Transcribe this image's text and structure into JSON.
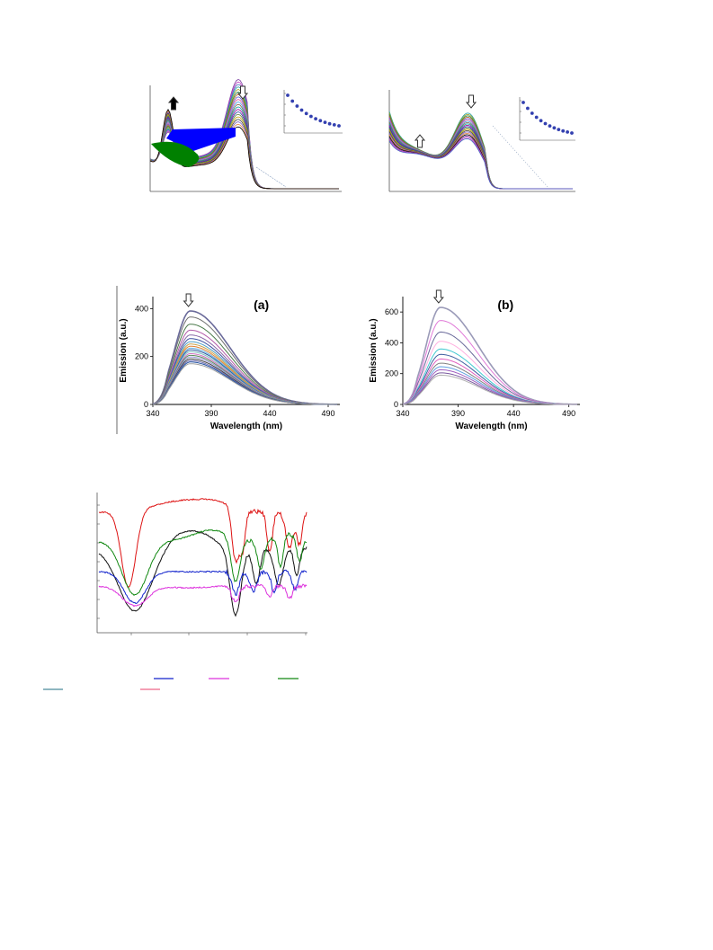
{
  "page": {
    "background": "#ffffff"
  },
  "uv_figures": [
    {
      "arrows": [
        {
          "direction": "up",
          "color": "#000000"
        },
        {
          "direction": "down",
          "color": "#ffffff"
        }
      ],
      "highlight_shapes": [
        {
          "color": "#0000ff"
        },
        {
          "color": "#008000"
        }
      ],
      "spectra_count": 20,
      "inset": {
        "marker_color": "#3340b0",
        "points": 12
      }
    },
    {
      "arrows": [
        {
          "direction": "up",
          "color": "#ffffff"
        },
        {
          "direction": "down",
          "color": "#ffffff"
        }
      ],
      "spectra_count": 20,
      "inset": {
        "marker_color": "#3340b0",
        "points": 12
      }
    }
  ],
  "chart_data": [
    {
      "type": "line",
      "panel_label": "(a)",
      "xlabel": "Wavelength (nm)",
      "ylabel": "Emission (a.u.)",
      "xlim": [
        340,
        500
      ],
      "ylim": [
        0,
        450
      ],
      "x_ticks": [
        340,
        390,
        440,
        490
      ],
      "y_ticks": [
        0,
        200,
        400
      ],
      "peak_wavelength": 372,
      "series_peaks": [
        390,
        365,
        335,
        310,
        290,
        275,
        262,
        252,
        243,
        235,
        228,
        220,
        212,
        205,
        198,
        190,
        183,
        177,
        170
      ],
      "series_colors": [
        "#6a6a9a",
        "#6f6f6f",
        "#4a7a4a",
        "#b25aa8",
        "#8a6aa8",
        "#3a4fa0",
        "#4fa0c8",
        "#c9a24a",
        "#e08030",
        "#6ab0e0",
        "#2a5aa0",
        "#80c0c0",
        "#d070c0",
        "#5a8a5a",
        "#9090d0",
        "#404040",
        "#7070b0",
        "#2050a0",
        "#a0a0a0"
      ],
      "arrow": {
        "direction": "down",
        "color": "#ffffff"
      }
    },
    {
      "type": "line",
      "panel_label": "(b)",
      "xlabel": "Wavelength (nm)",
      "ylabel": "Emission (a.u.)",
      "xlim": [
        340,
        500
      ],
      "ylim": [
        0,
        700
      ],
      "x_ticks": [
        340,
        390,
        440,
        490
      ],
      "y_ticks": [
        0,
        200,
        400,
        600
      ],
      "peak_wavelength": 374,
      "series_peaks": [
        630,
        545,
        470,
        410,
        360,
        325,
        295,
        268,
        245,
        225,
        205,
        190
      ],
      "series_colors": [
        "#9a9ab8",
        "#e07ad8",
        "#6a6a9a",
        "#ffb0e0",
        "#40c8d0",
        "#4060a0",
        "#e060c0",
        "#808080",
        "#60a0e0",
        "#a060c0",
        "#7a5aa0",
        "#b0b0b0"
      ],
      "arrow": {
        "direction": "down",
        "color": "#ffffff"
      }
    },
    {
      "type": "line",
      "series_colors": [
        "#dd1111",
        "#111111",
        "#118811",
        "#1122cc",
        "#dd33dd"
      ]
    }
  ],
  "legend_swatches": [
    {
      "color": "#1122cc"
    },
    {
      "color": "#dd33dd"
    },
    {
      "color": "#118811"
    },
    {
      "color": "#4a8a9a"
    },
    {
      "color": "#ee6688"
    }
  ]
}
